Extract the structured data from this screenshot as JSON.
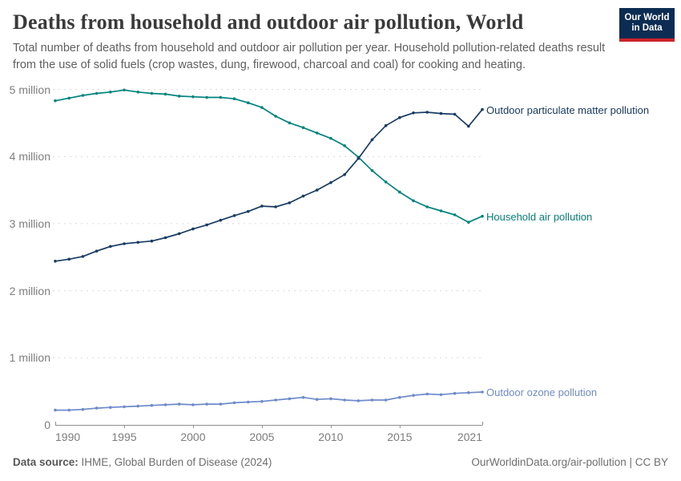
{
  "header": {
    "title": "Deaths from household and outdoor air pollution, World",
    "subtitle": "Total number of deaths from household and outdoor air pollution per year. Household pollution-related deaths result from the use of solid fuels (crop wastes, dung, firewood, charcoal and coal) for cooking and heating.",
    "logo": {
      "line1": "Our World",
      "line2": "in Data",
      "bg_color": "#0c2c54",
      "bar_color": "#cd2328"
    }
  },
  "chart_data": {
    "type": "line",
    "title": "Deaths from household and outdoor air pollution, World",
    "unit": "deaths per year (millions)",
    "xlabel": "",
    "ylabel": "",
    "xlim": [
      1990,
      2021
    ],
    "ylim": [
      0,
      5000000
    ],
    "grid": "horizontal-dashed",
    "legend_position": "end-of-line-labels",
    "x": [
      1990,
      1991,
      1992,
      1993,
      1994,
      1995,
      1996,
      1997,
      1998,
      1999,
      2000,
      2001,
      2002,
      2003,
      2004,
      2005,
      2006,
      2007,
      2008,
      2009,
      2010,
      2011,
      2012,
      2013,
      2014,
      2015,
      2016,
      2017,
      2018,
      2019,
      2020,
      2021
    ],
    "x_tick_labels": [
      "1990",
      "1995",
      "2000",
      "2005",
      "2010",
      "2015",
      "2021"
    ],
    "x_ticks": [
      1990,
      1995,
      2000,
      2005,
      2010,
      2015,
      2021
    ],
    "y_ticks": [
      {
        "value": 0,
        "label": "0"
      },
      {
        "value": 1,
        "label": "1 million"
      },
      {
        "value": 2,
        "label": "2 million"
      },
      {
        "value": 3,
        "label": "3 million"
      },
      {
        "value": 4,
        "label": "4 million"
      },
      {
        "value": 5,
        "label": "5 million"
      }
    ],
    "series": [
      {
        "name": "Household air pollution",
        "color": "#00847e",
        "values_millions": [
          4.83,
          4.87,
          4.91,
          4.94,
          4.96,
          4.99,
          4.96,
          4.94,
          4.93,
          4.9,
          4.89,
          4.88,
          4.88,
          4.86,
          4.8,
          4.73,
          4.6,
          4.5,
          4.43,
          4.35,
          4.27,
          4.16,
          3.99,
          3.79,
          3.62,
          3.47,
          3.34,
          3.25,
          3.19,
          3.13,
          3.02,
          3.11
        ]
      },
      {
        "name": "Outdoor ozone pollution",
        "color": "#6e8bc9",
        "values_millions": [
          0.22,
          0.22,
          0.23,
          0.25,
          0.26,
          0.27,
          0.28,
          0.29,
          0.3,
          0.31,
          0.3,
          0.31,
          0.31,
          0.33,
          0.34,
          0.35,
          0.37,
          0.39,
          0.41,
          0.38,
          0.39,
          0.37,
          0.36,
          0.37,
          0.37,
          0.41,
          0.44,
          0.46,
          0.45,
          0.47,
          0.48,
          0.49
        ]
      },
      {
        "name": "Outdoor particulate matter pollution",
        "color": "#173b63",
        "values_millions": [
          2.44,
          2.47,
          2.51,
          2.59,
          2.66,
          2.7,
          2.72,
          2.74,
          2.79,
          2.85,
          2.92,
          2.98,
          3.05,
          3.12,
          3.18,
          3.26,
          3.25,
          3.31,
          3.41,
          3.5,
          3.61,
          3.73,
          3.97,
          4.25,
          4.46,
          4.58,
          4.65,
          4.66,
          4.64,
          4.63,
          4.45,
          4.7
        ]
      }
    ]
  },
  "footer": {
    "source_label": "Data source:",
    "source_value": " IHME, Global Burden of Disease (2024)",
    "attribution": "OurWorldinData.org/air-pollution | CC BY"
  }
}
